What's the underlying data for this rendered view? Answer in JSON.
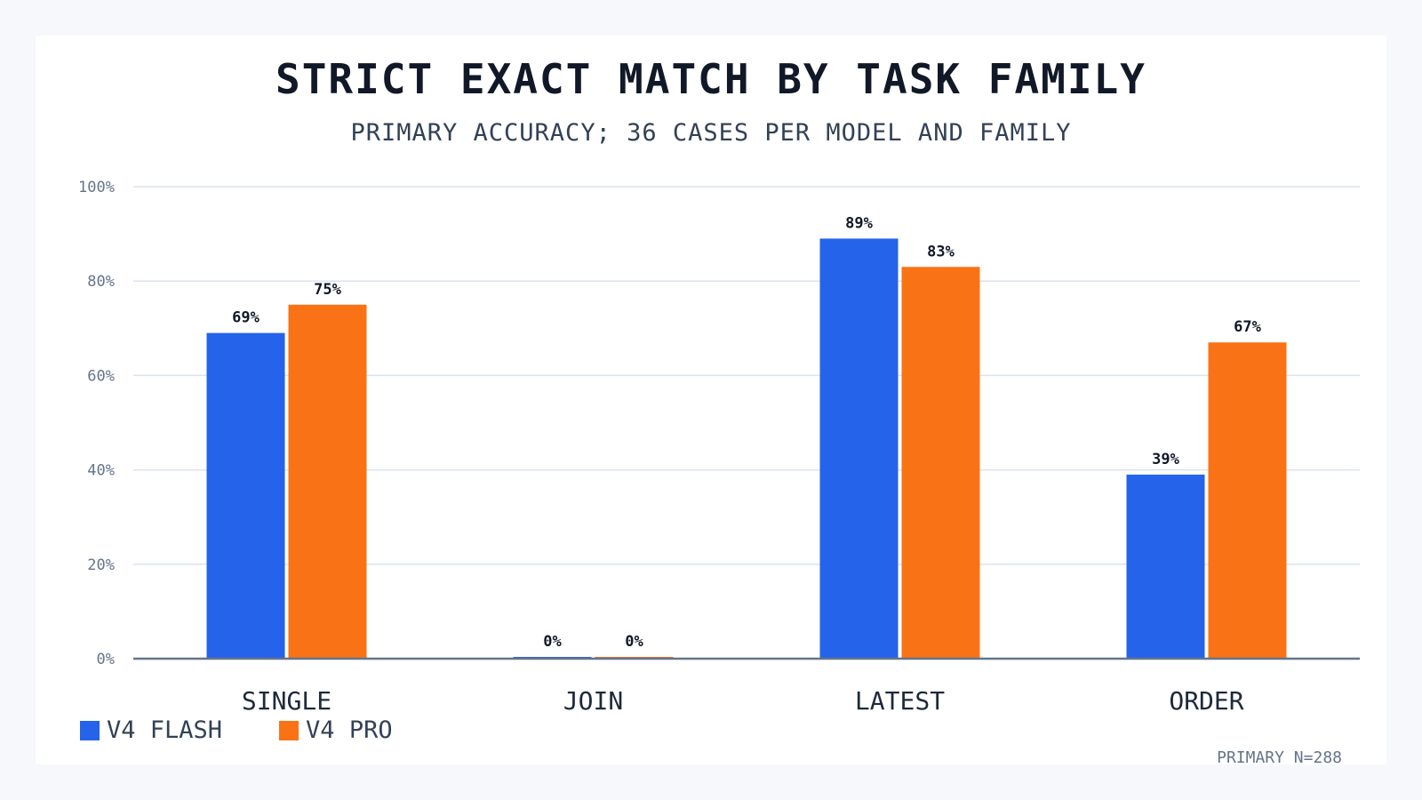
{
  "chart_data": {
    "type": "bar",
    "title": "STRICT EXACT MATCH BY TASK FAMILY",
    "subtitle": "PRIMARY ACCURACY; 36 CASES PER MODEL AND FAMILY",
    "xlabel": "",
    "ylabel": "",
    "categories": [
      "SINGLE",
      "JOIN",
      "LATEST",
      "ORDER"
    ],
    "series": [
      {
        "name": "V4 FLASH",
        "color": "#2563eb",
        "values": [
          69,
          0,
          89,
          39
        ],
        "labels": [
          "69%",
          "0%",
          "89%",
          "39%"
        ]
      },
      {
        "name": "V4 PRO",
        "color": "#f97316",
        "values": [
          75,
          0,
          83,
          67
        ],
        "labels": [
          "75%",
          "0%",
          "83%",
          "67%"
        ]
      }
    ],
    "ylim": [
      0,
      100
    ],
    "yticks": [
      0,
      20,
      40,
      60,
      80,
      100
    ],
    "ytick_labels": [
      "0%",
      "20%",
      "40%",
      "60%",
      "80%",
      "100%"
    ],
    "grid": true,
    "legend_position": "bottom-left"
  },
  "footnote": "PRIMARY N=288",
  "colors": {
    "grid": "#dbe3ee",
    "axis": "#64748b",
    "tick_text": "#64748b",
    "value_text": "#111827",
    "category_text": "#1e293b"
  }
}
